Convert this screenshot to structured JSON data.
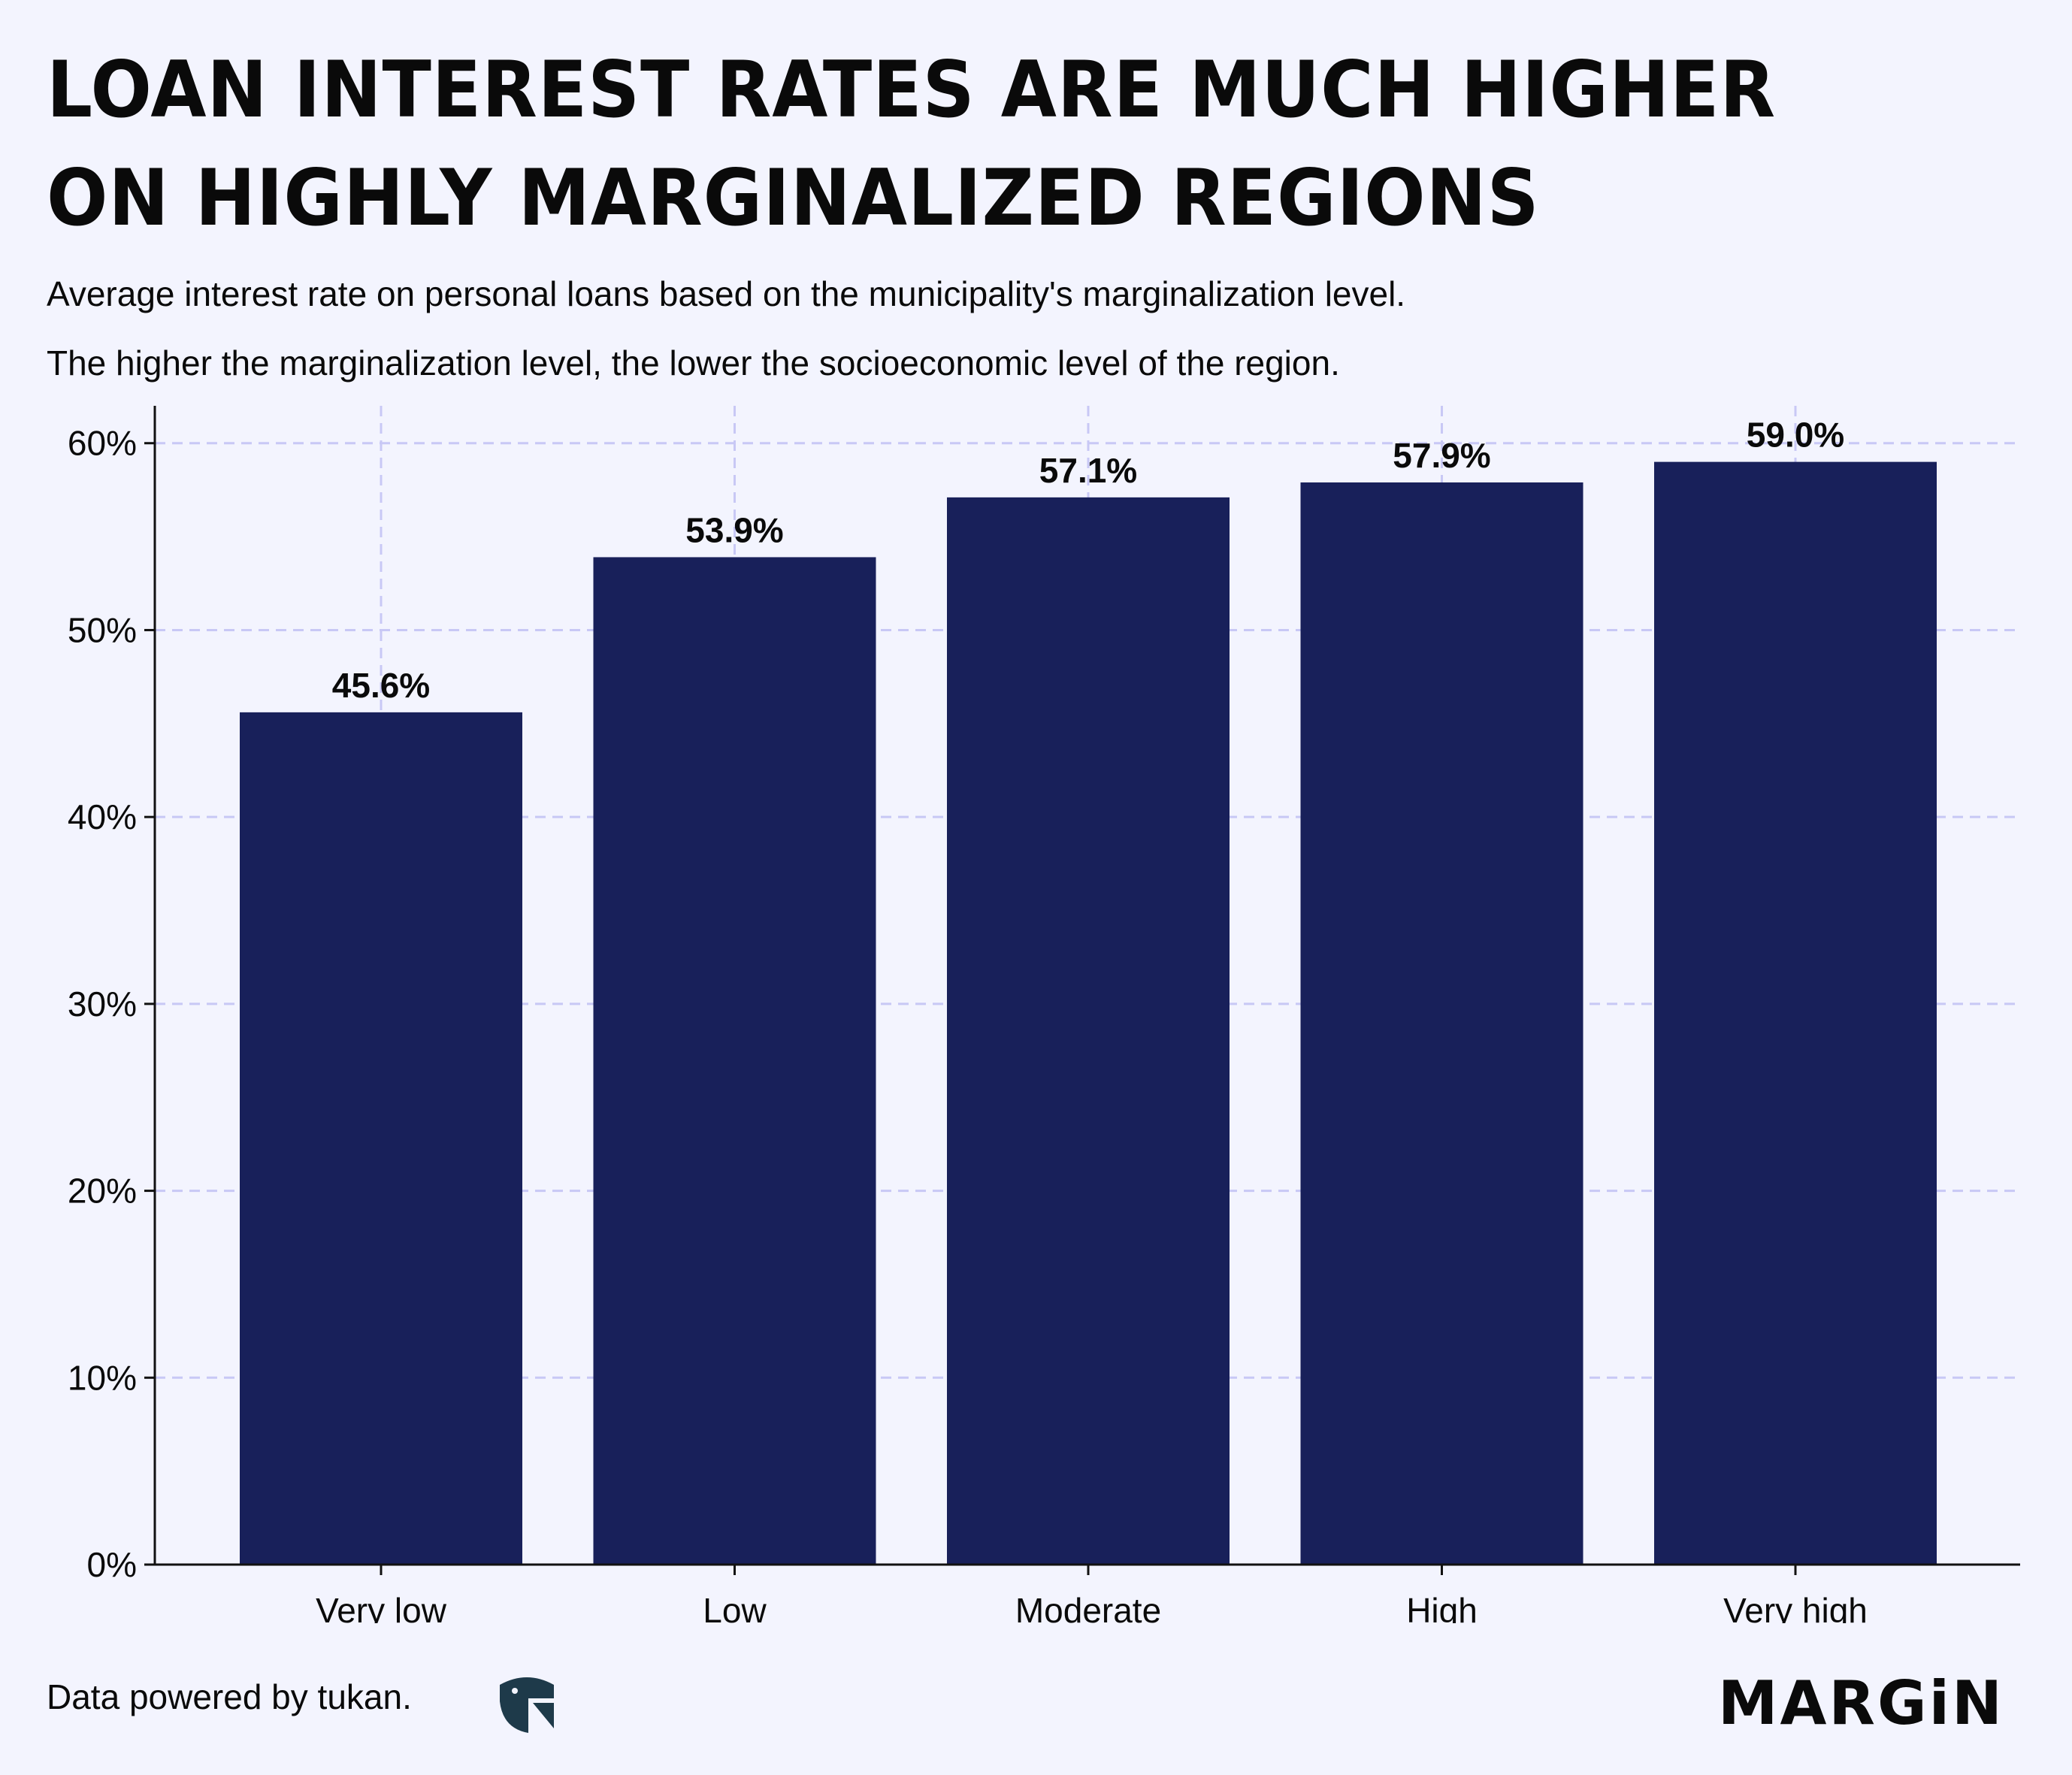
{
  "header": {
    "title_line1": "LOAN INTEREST RATES ARE MUCH HIGHER",
    "title_line2": "ON HIGHLY MARGINALIZED REGIONS",
    "subtitle_line1": "Average interest rate on personal loans based on the municipality's marginalization level.",
    "subtitle_line2": "The higher the marginalization level, the lower the socioeconomic level of the region."
  },
  "footer": {
    "source": "Data powered by tukan.",
    "brand": "MARGiN"
  },
  "colors": {
    "bar": "#18205a",
    "background": "#f3f4fe",
    "grid": "#c8c8f5",
    "axis": "#111111"
  },
  "chart_data": {
    "type": "bar",
    "categories": [
      "Very low",
      "Low",
      "Moderate",
      "High",
      "Very high"
    ],
    "values": [
      45.6,
      53.9,
      57.1,
      57.9,
      59.0
    ],
    "data_labels": [
      "45.6%",
      "53.9%",
      "57.1%",
      "57.9%",
      "59.0%"
    ],
    "yticks": [
      0,
      10,
      20,
      30,
      40,
      50,
      60
    ],
    "ytick_labels": [
      "0%",
      "10%",
      "20%",
      "30%",
      "40%",
      "50%",
      "60%"
    ],
    "ylim": [
      0,
      62
    ],
    "grid": true,
    "grid_style": "dashed",
    "legend": "none"
  }
}
